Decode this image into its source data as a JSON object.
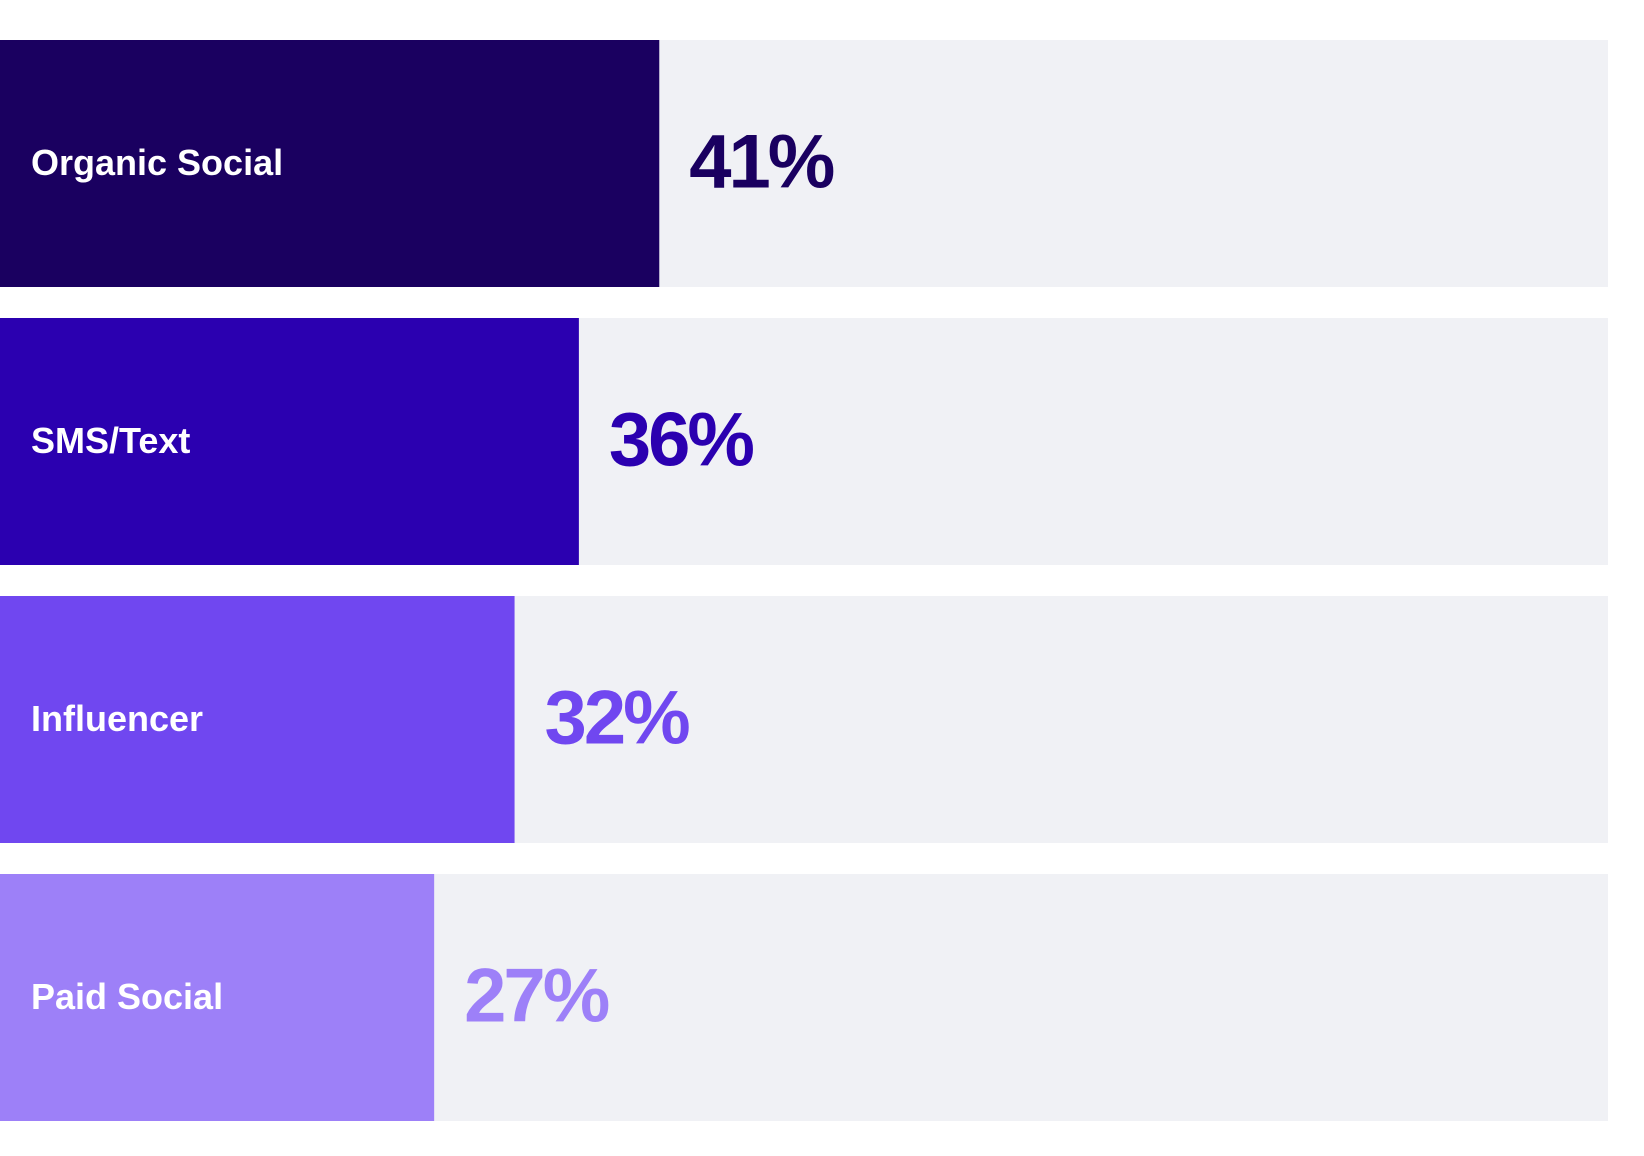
{
  "chart_data": {
    "type": "bar",
    "orientation": "horizontal",
    "categories": [
      "Organic Social",
      "SMS/Text",
      "Influencer",
      "Paid Social"
    ],
    "values": [
      41,
      36,
      32,
      27
    ],
    "value_labels": [
      "41%",
      "36%",
      "32%",
      "27%"
    ],
    "colors": [
      "#1a0060",
      "#2b00b0",
      "#7047f0",
      "#9d80f8"
    ],
    "xlim": [
      0,
      100
    ]
  }
}
